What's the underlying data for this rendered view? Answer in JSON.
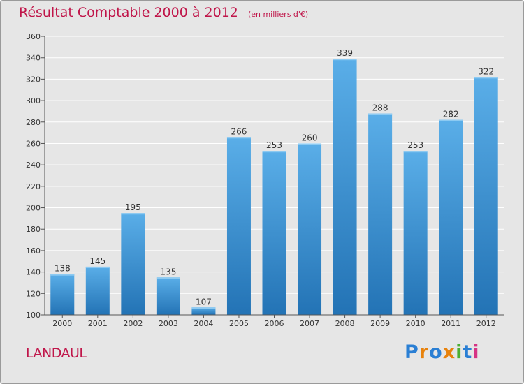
{
  "chart_data": {
    "type": "bar",
    "title": "Résultat Comptable 2000 à 2012",
    "subtitle": "(en milliers d'€)",
    "categories": [
      "2000",
      "2001",
      "2002",
      "2003",
      "2004",
      "2005",
      "2006",
      "2007",
      "2008",
      "2009",
      "2010",
      "2011",
      "2012"
    ],
    "values": [
      138,
      145,
      195,
      135,
      107,
      266,
      253,
      260,
      339,
      288,
      253,
      282,
      322
    ],
    "ylim": [
      100,
      360
    ],
    "yticks": [
      100,
      120,
      140,
      160,
      180,
      200,
      220,
      240,
      260,
      280,
      300,
      320,
      340,
      360
    ],
    "xlabel": "",
    "ylabel": "",
    "grid": true,
    "bar_color": "#3f97d8"
  },
  "footer": {
    "commune": "LANDAUL",
    "logo_letters": [
      "P",
      "r",
      "o",
      "x",
      "i",
      "t",
      "i"
    ],
    "logo_colors": [
      "#2a7fd4",
      "#e8820c",
      "#2a7fd4",
      "#e8820c",
      "#4caf32",
      "#2a7fd4",
      "#d63384"
    ]
  }
}
